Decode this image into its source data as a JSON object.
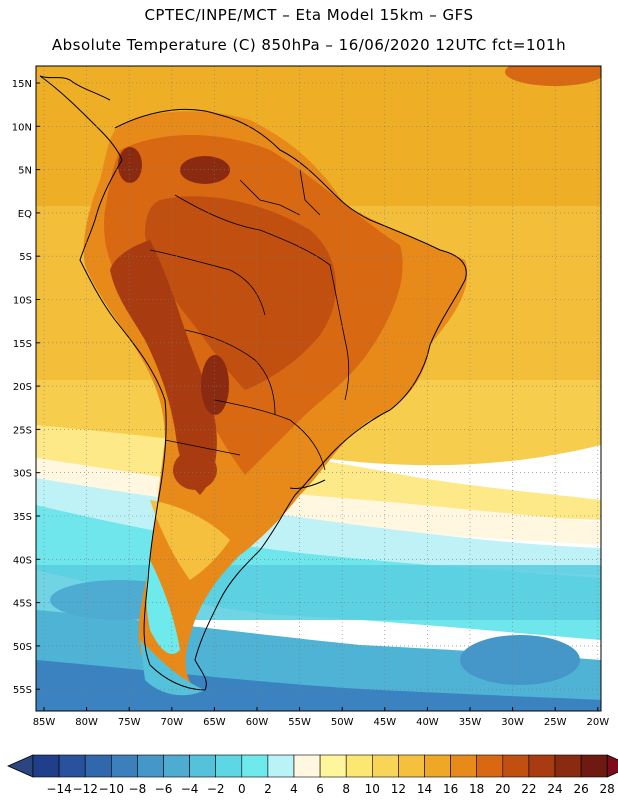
{
  "header": {
    "title_line1": "CPTEC/INPE/MCT –  Eta Model 15km – GFS",
    "title_line2": "Absolute Temperature (C) 850hPa – 16/06/2020 12UTC fct=101h"
  },
  "map": {
    "lat_labels": [
      "15N",
      "10N",
      "5N",
      "EQ",
      "5S",
      "10S",
      "15S",
      "20S",
      "25S",
      "30S",
      "35S",
      "40S",
      "45S",
      "50S",
      "55S"
    ],
    "lon_labels": [
      "85W",
      "80W",
      "75W",
      "70W",
      "65W",
      "60W",
      "55W",
      "50W",
      "45W",
      "40W",
      "35W",
      "30W",
      "25W",
      "20W"
    ]
  },
  "colorbar": {
    "colors": [
      "#1f3f8a",
      "#28519e",
      "#3168ad",
      "#3b7fbd",
      "#4596c9",
      "#4eacd3",
      "#55c2dc",
      "#5ed7e4",
      "#6ee9ec",
      "#b9f2f7",
      "#fff7df",
      "#fff59a",
      "#fce772",
      "#f8d558",
      "#f4c03e",
      "#eea825",
      "#e88a1a",
      "#d86811",
      "#c04f10",
      "#a83c10",
      "#8a2a10",
      "#6e1a10"
    ],
    "labels": [
      "-14",
      "-12",
      "-10",
      "-8",
      "-6",
      "-4",
      "-2",
      "0",
      "2",
      "4",
      "6",
      "8",
      "10",
      "12",
      "14",
      "16",
      "18",
      "20",
      "22",
      "24",
      "26",
      "28"
    ],
    "under_color": "#2a4580",
    "over_color": "#7d0b1c"
  }
}
